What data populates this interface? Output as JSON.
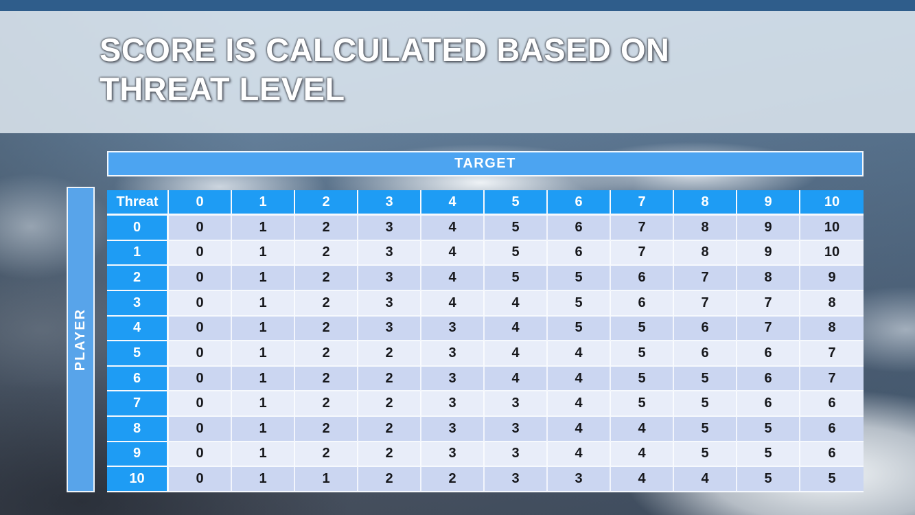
{
  "slide": {
    "title": "SCORE IS CALCULATED BASED ON THREAT LEVEL",
    "target_label": "TARGET",
    "player_label": "PLAYER"
  },
  "table": {
    "corner_label": "Threat",
    "column_headers": [
      "0",
      "1",
      "2",
      "3",
      "4",
      "5",
      "6",
      "7",
      "8",
      "9",
      "10"
    ],
    "rows": [
      {
        "label": "0",
        "values": [
          0,
          1,
          2,
          3,
          4,
          5,
          6,
          7,
          8,
          9,
          10
        ]
      },
      {
        "label": "1",
        "values": [
          0,
          1,
          2,
          3,
          4,
          5,
          6,
          7,
          8,
          9,
          10
        ]
      },
      {
        "label": "2",
        "values": [
          0,
          1,
          2,
          3,
          4,
          5,
          5,
          6,
          7,
          8,
          9
        ]
      },
      {
        "label": "3",
        "values": [
          0,
          1,
          2,
          3,
          4,
          4,
          5,
          6,
          7,
          7,
          8
        ]
      },
      {
        "label": "4",
        "values": [
          0,
          1,
          2,
          3,
          3,
          4,
          5,
          5,
          6,
          7,
          8
        ]
      },
      {
        "label": "5",
        "values": [
          0,
          1,
          2,
          2,
          3,
          4,
          4,
          5,
          6,
          6,
          7
        ]
      },
      {
        "label": "6",
        "values": [
          0,
          1,
          2,
          2,
          3,
          4,
          4,
          5,
          5,
          6,
          7
        ]
      },
      {
        "label": "7",
        "values": [
          0,
          1,
          2,
          2,
          3,
          3,
          4,
          5,
          5,
          6,
          6
        ]
      },
      {
        "label": "8",
        "values": [
          0,
          1,
          2,
          2,
          3,
          3,
          4,
          4,
          5,
          5,
          6
        ]
      },
      {
        "label": "9",
        "values": [
          0,
          1,
          2,
          2,
          3,
          3,
          4,
          4,
          5,
          5,
          6
        ]
      },
      {
        "label": "10",
        "values": [
          0,
          1,
          1,
          2,
          2,
          3,
          3,
          4,
          4,
          5,
          5
        ]
      }
    ]
  },
  "colors": {
    "top_bar": "#2f5d8b",
    "title_band": "#dde6ef",
    "target_bar": "#4ca4f1",
    "player_bar": "#58a4ea",
    "header_cell": "#1e9cf4",
    "body_row_dark": "#cbd6f1",
    "body_row_light": "#e8edf9",
    "body_text": "#17181c"
  }
}
